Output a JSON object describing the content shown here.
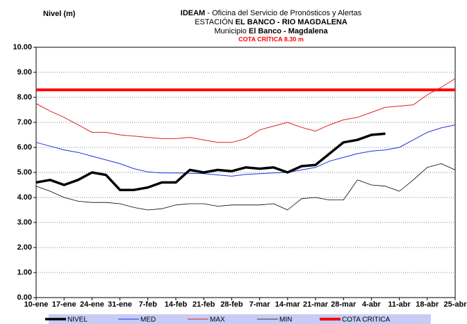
{
  "chart_data": {
    "type": "line",
    "y_label": "Nivel (m)",
    "title": [
      "IDEAM",
      "- Oficina  del Servicio de Pronósticos y Alertas"
    ],
    "subtitle": [
      "ESTACIÓN",
      "EL BANCO - RIO MAGDALENA"
    ],
    "location": [
      "Municipio",
      "El Banco - Magdalena"
    ],
    "annotation": "COTA CRÍTICA  8.30  m",
    "categories": [
      "10-ene",
      null,
      "17-ene",
      null,
      "24-ene",
      null,
      "31-ene",
      null,
      "7-feb",
      null,
      "14-feb",
      null,
      "21-feb",
      null,
      "28-feb",
      null,
      "7-mar",
      null,
      "14-mar",
      null,
      "21-mar",
      null,
      "28-mar",
      null,
      "4-abr",
      null,
      "11-abr",
      null,
      "18-abr",
      null,
      "25-abr"
    ],
    "ylim": [
      0,
      10
    ],
    "yticks": [
      {
        "value": 0,
        "label": "0.00"
      },
      {
        "value": 1,
        "label": "1.00"
      },
      {
        "value": 2,
        "label": "2.00"
      },
      {
        "value": 3,
        "label": "3.00"
      },
      {
        "value": 4,
        "label": "4.00"
      },
      {
        "value": 5,
        "label": "5.00"
      },
      {
        "value": 6,
        "label": "6.00"
      },
      {
        "value": 7,
        "label": "7.00"
      },
      {
        "value": 8,
        "label": "8.00"
      },
      {
        "value": 9,
        "label": "9.00"
      },
      {
        "value": 10,
        "label": "10.00"
      }
    ],
    "grid": true,
    "series": [
      {
        "name": "NIVEL",
        "color": "#000000",
        "width": 3.5,
        "values": [
          4.6,
          4.7,
          4.5,
          4.7,
          5.0,
          4.9,
          4.3,
          4.3,
          4.4,
          4.6,
          4.6,
          5.1,
          5.0,
          5.1,
          5.05,
          5.2,
          5.15,
          5.2,
          5.0,
          5.25,
          5.3,
          5.75,
          6.2,
          6.3,
          6.5,
          6.55,
          null,
          null,
          null,
          null,
          null
        ]
      },
      {
        "name": "MED",
        "color": "#2030e0",
        "width": 1,
        "values": [
          6.2,
          6.05,
          5.9,
          5.8,
          5.65,
          5.5,
          5.35,
          5.15,
          5.02,
          4.98,
          4.98,
          4.97,
          4.95,
          4.9,
          4.85,
          4.92,
          4.95,
          4.98,
          5.0,
          5.1,
          5.2,
          5.45,
          5.6,
          5.75,
          5.85,
          5.9,
          6.0,
          6.3,
          6.6,
          6.78,
          6.9
        ]
      },
      {
        "name": "MAX",
        "color": "#e02020",
        "width": 1,
        "values": [
          7.75,
          7.45,
          7.2,
          6.9,
          6.6,
          6.6,
          6.5,
          6.45,
          6.4,
          6.35,
          6.35,
          6.4,
          6.3,
          6.2,
          6.2,
          6.35,
          6.7,
          6.85,
          7.0,
          6.8,
          6.65,
          6.9,
          7.1,
          7.2,
          7.4,
          7.6,
          7.65,
          7.7,
          8.1,
          8.4,
          8.75
        ]
      },
      {
        "name": "MIN",
        "color": "#000000",
        "width": 0.8,
        "values": [
          4.45,
          4.25,
          4.0,
          3.85,
          3.8,
          3.8,
          3.75,
          3.6,
          3.5,
          3.55,
          3.7,
          3.75,
          3.75,
          3.65,
          3.7,
          3.7,
          3.7,
          3.75,
          3.5,
          3.95,
          4.0,
          3.9,
          3.9,
          4.7,
          4.5,
          4.45,
          4.25,
          4.7,
          5.2,
          5.35,
          5.1
        ]
      },
      {
        "name": "COTA CRITICA",
        "color": "#ff0000",
        "width": 4,
        "values": [
          8.3,
          8.3,
          8.3,
          8.3,
          8.3,
          8.3,
          8.3,
          8.3,
          8.3,
          8.3,
          8.3,
          8.3,
          8.3,
          8.3,
          8.3,
          8.3,
          8.3,
          8.3,
          8.3,
          8.3,
          8.3,
          8.3,
          8.3,
          8.3,
          8.3,
          8.3,
          8.3,
          8.3,
          8.3,
          8.3,
          8.3
        ]
      }
    ]
  }
}
